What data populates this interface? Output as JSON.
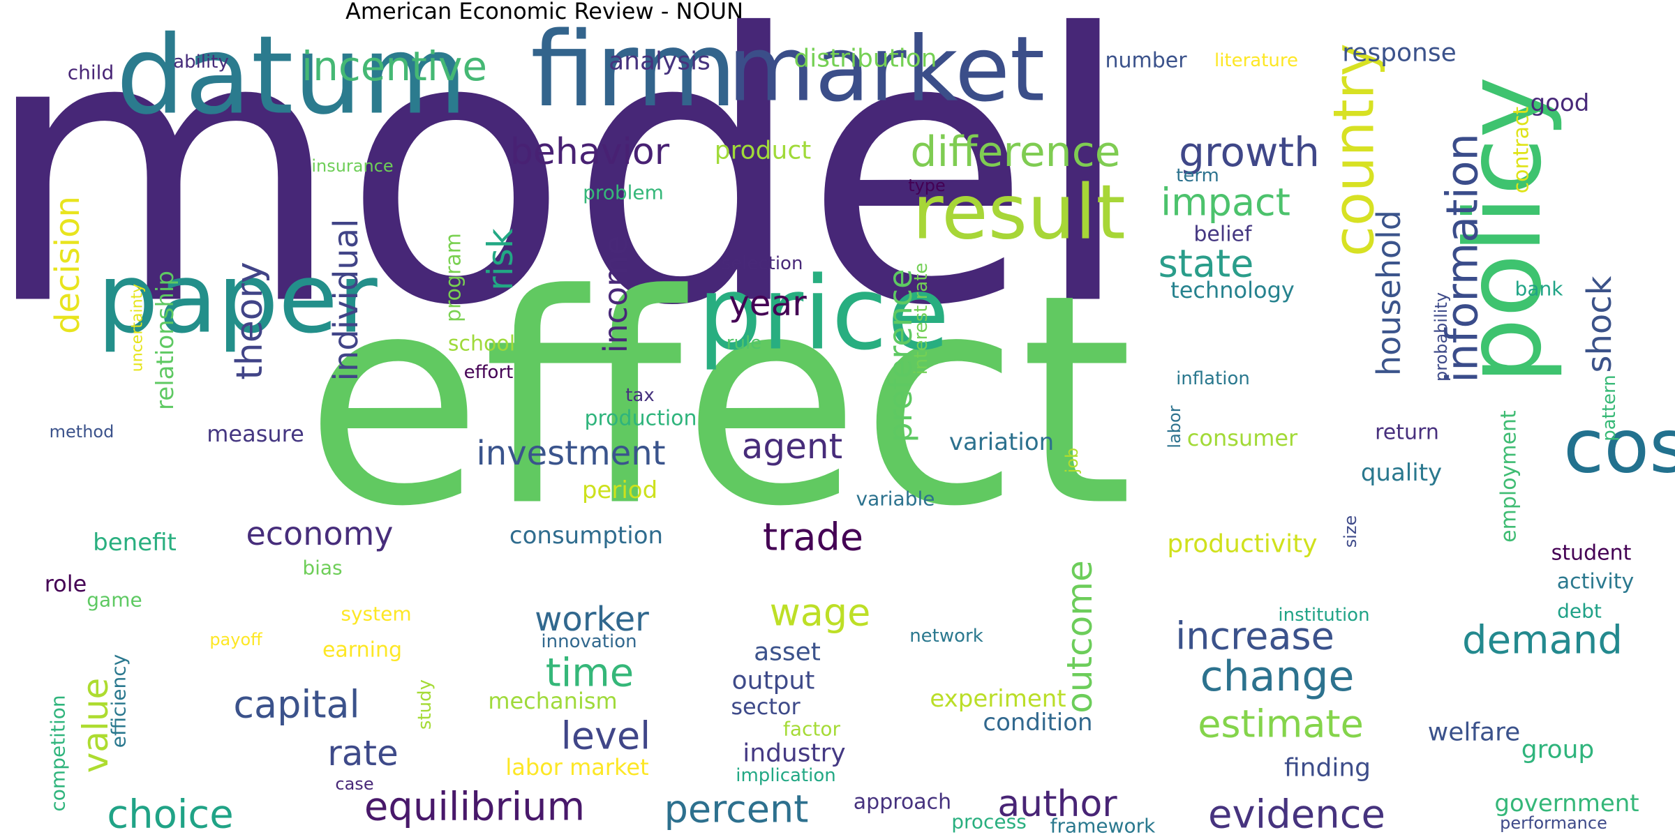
{
  "chart_data": {
    "type": "wordcloud",
    "title": "American Economic Review - NOUN",
    "colormap": "viridis",
    "background": "#ffffff",
    "words": [
      {
        "text": "model",
        "color": "#472777"
      },
      {
        "text": "effect",
        "color": "#61c961"
      },
      {
        "text": "datum",
        "color": "#2b7b8e"
      },
      {
        "text": "firm",
        "color": "#33648c"
      },
      {
        "text": "market",
        "color": "#3b4e89"
      },
      {
        "text": "paper",
        "color": "#238f8a"
      },
      {
        "text": "price",
        "color": "#28ae80"
      },
      {
        "text": "policy",
        "color": "#3ec36f"
      },
      {
        "text": "result",
        "color": "#a7d637"
      },
      {
        "text": "information",
        "color": "#3a4c8a"
      },
      {
        "text": "country",
        "color": "#d7e123"
      },
      {
        "text": "cost",
        "color": "#22718e"
      },
      {
        "text": "incentive",
        "color": "#45b874"
      },
      {
        "text": "difference",
        "color": "#7fcc52"
      },
      {
        "text": "growth",
        "color": "#3f4788"
      },
      {
        "text": "behavior",
        "color": "#482173"
      },
      {
        "text": "impact",
        "color": "#4cc26c"
      },
      {
        "text": "state",
        "color": "#2a9d8a"
      },
      {
        "text": "household",
        "color": "#3b548b"
      },
      {
        "text": "shock",
        "color": "#3b5289"
      },
      {
        "text": "decision",
        "color": "#e8e41e"
      },
      {
        "text": "theory",
        "color": "#414487"
      },
      {
        "text": "individual",
        "color": "#414487"
      },
      {
        "text": "risk",
        "color": "#22a884"
      },
      {
        "text": "income",
        "color": "#482878"
      },
      {
        "text": "year",
        "color": "#440154"
      },
      {
        "text": "preference",
        "color": "#5ec962"
      },
      {
        "text": "investment",
        "color": "#3a548c"
      },
      {
        "text": "agent",
        "color": "#472c7a"
      },
      {
        "text": "economy",
        "color": "#472d7b"
      },
      {
        "text": "trade",
        "color": "#440154"
      },
      {
        "text": "worker",
        "color": "#31688e"
      },
      {
        "text": "wage",
        "color": "#bddf26"
      },
      {
        "text": "time",
        "color": "#35b779"
      },
      {
        "text": "increase",
        "color": "#3b528b"
      },
      {
        "text": "change",
        "color": "#2c728e"
      },
      {
        "text": "demand",
        "color": "#23898e"
      },
      {
        "text": "capital",
        "color": "#3b528b"
      },
      {
        "text": "value",
        "color": "#addc30"
      },
      {
        "text": "level",
        "color": "#404688"
      },
      {
        "text": "rate",
        "color": "#3e4a89"
      },
      {
        "text": "equilibrium",
        "color": "#48186a"
      },
      {
        "text": "percent",
        "color": "#2d708e"
      },
      {
        "text": "author",
        "color": "#482475"
      },
      {
        "text": "evidence",
        "color": "#46337e"
      },
      {
        "text": "choice",
        "color": "#20a386"
      },
      {
        "text": "estimate",
        "color": "#84d44b"
      },
      {
        "text": "outcome",
        "color": "#6ccd5a"
      },
      {
        "text": "relationship",
        "color": "#5ec962"
      },
      {
        "text": "measure",
        "color": "#453781"
      },
      {
        "text": "benefit",
        "color": "#29af7f"
      },
      {
        "text": "consumption",
        "color": "#2f6c8e"
      },
      {
        "text": "variation",
        "color": "#2c718e"
      },
      {
        "text": "consumer",
        "color": "#a2da37"
      },
      {
        "text": "quality",
        "color": "#2a788e"
      },
      {
        "text": "productivity",
        "color": "#d0e11c"
      },
      {
        "text": "employment",
        "color": "#3fbc73"
      },
      {
        "text": "student",
        "color": "#440154"
      },
      {
        "text": "activity",
        "color": "#2a788e"
      },
      {
        "text": "period",
        "color": "#cde11d"
      },
      {
        "text": "asset",
        "color": "#3b528b"
      },
      {
        "text": "output",
        "color": "#3e4a89"
      },
      {
        "text": "sector",
        "color": "#3e4a89"
      },
      {
        "text": "industry",
        "color": "#443983"
      },
      {
        "text": "mechanism",
        "color": "#9fda3a"
      },
      {
        "text": "experiment",
        "color": "#bade28"
      },
      {
        "text": "condition",
        "color": "#31688e"
      },
      {
        "text": "welfare",
        "color": "#3b528b"
      },
      {
        "text": "group",
        "color": "#2fb47c"
      },
      {
        "text": "finding",
        "color": "#3d4d8a"
      },
      {
        "text": "government",
        "color": "#35b779"
      },
      {
        "text": "analysis",
        "color": "#46337e"
      },
      {
        "text": "distribution",
        "color": "#75d054"
      },
      {
        "text": "product",
        "color": "#a0da39"
      },
      {
        "text": "response",
        "color": "#3b528b"
      },
      {
        "text": "good",
        "color": "#482979"
      },
      {
        "text": "contract",
        "color": "#dfe318"
      },
      {
        "text": "number",
        "color": "#3b528b"
      },
      {
        "text": "literature",
        "color": "#fde725"
      },
      {
        "text": "term",
        "color": "#2c728e"
      },
      {
        "text": "type",
        "color": "#440154"
      },
      {
        "text": "belief",
        "color": "#453781"
      },
      {
        "text": "bank",
        "color": "#20a486"
      },
      {
        "text": "technology",
        "color": "#26828e"
      },
      {
        "text": "inflation",
        "color": "#2a788e"
      },
      {
        "text": "probability",
        "color": "#3e4a89"
      },
      {
        "text": "pattern",
        "color": "#38b977"
      },
      {
        "text": "return",
        "color": "#472f7d"
      },
      {
        "text": "labor",
        "color": "#2c728e"
      },
      {
        "text": "job",
        "color": "#b2dd2d"
      },
      {
        "text": "size",
        "color": "#3e4a89"
      },
      {
        "text": "interest rate",
        "color": "#73d056"
      },
      {
        "text": "selection",
        "color": "#482878"
      },
      {
        "text": "rule",
        "color": "#52c569"
      },
      {
        "text": "program",
        "color": "#7ad151"
      },
      {
        "text": "school",
        "color": "#9fda3a"
      },
      {
        "text": "effort",
        "color": "#440154"
      },
      {
        "text": "tax",
        "color": "#46327e"
      },
      {
        "text": "production",
        "color": "#2fb47c"
      },
      {
        "text": "problem",
        "color": "#35b779"
      },
      {
        "text": "insurance",
        "color": "#6ece58"
      },
      {
        "text": "child",
        "color": "#482576"
      },
      {
        "text": "ability",
        "color": "#472c7a"
      },
      {
        "text": "uncertainty",
        "color": "#e5e419"
      },
      {
        "text": "method",
        "color": "#3b528b"
      },
      {
        "text": "bias",
        "color": "#6ece58"
      },
      {
        "text": "role",
        "color": "#440154"
      },
      {
        "text": "game",
        "color": "#5ec962"
      },
      {
        "text": "system",
        "color": "#fde725"
      },
      {
        "text": "payoff",
        "color": "#fde725"
      },
      {
        "text": "earning",
        "color": "#fde725"
      },
      {
        "text": "innovation",
        "color": "#31688e"
      },
      {
        "text": "variable",
        "color": "#2c728e"
      },
      {
        "text": "network",
        "color": "#2a788e"
      },
      {
        "text": "institution",
        "color": "#20a386"
      },
      {
        "text": "debt",
        "color": "#1fa187"
      },
      {
        "text": "efficiency",
        "color": "#2a788e"
      },
      {
        "text": "competition",
        "color": "#2fb47c"
      },
      {
        "text": "study",
        "color": "#a5db36"
      },
      {
        "text": "labor market",
        "color": "#fde725"
      },
      {
        "text": "factor",
        "color": "#a5db36"
      },
      {
        "text": "implication",
        "color": "#22a884"
      },
      {
        "text": "case",
        "color": "#482878"
      },
      {
        "text": "approach",
        "color": "#46327e"
      },
      {
        "text": "process",
        "color": "#29af7f"
      },
      {
        "text": "framework",
        "color": "#2a788e"
      },
      {
        "text": "performance",
        "color": "#3e4a89"
      }
    ]
  }
}
